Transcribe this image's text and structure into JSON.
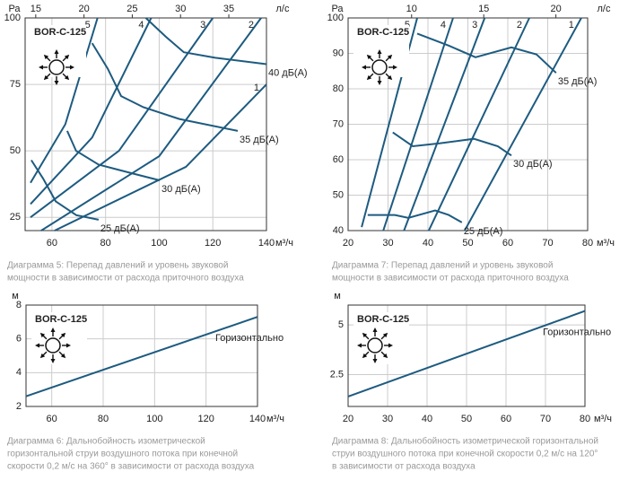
{
  "chart_data": [
    {
      "type": "line",
      "model": "BOR-C-125",
      "caption": [
        "Диаграмма 5: Перепад давлений и уровень звуковой",
        "мощности в зависимости от  расхода приточного воздуха"
      ],
      "ylabel": "Ра",
      "xlabel": "м³/ч",
      "x2label": "л/с",
      "color": "#1d5b80",
      "grid": true,
      "xlim": [
        50,
        140
      ],
      "ylim": [
        20,
        100
      ],
      "xticks": [
        60,
        80,
        100,
        120,
        140
      ],
      "yticks": [
        25,
        50,
        75,
        100
      ],
      "x2lim": [
        13.9,
        38.9
      ],
      "x2ticks": [
        15,
        20,
        25,
        30,
        35
      ],
      "series": [
        {
          "name": "1",
          "x": [
            61,
            110,
            140
          ],
          "values": [
            20,
            44,
            75
          ]
        },
        {
          "name": "2",
          "x": [
            56,
            100,
            138
          ],
          "values": [
            20,
            48,
            100
          ]
        },
        {
          "name": "3",
          "x": [
            52,
            85,
            120
          ],
          "values": [
            25,
            50,
            100
          ]
        },
        {
          "name": "4",
          "x": [
            52,
            75,
            97
          ],
          "values": [
            30,
            55,
            100
          ]
        },
        {
          "name": "5",
          "x": [
            52,
            65,
            77
          ],
          "values": [
            38,
            60,
            100
          ]
        },
        {
          "name": "40 дБ(А)",
          "x": [
            95,
            102.5,
            109.2,
            120.9,
            140
          ],
          "values": [
            100,
            92.9,
            87.1,
            85,
            82.6
          ]
        },
        {
          "name": "35 дБ(А)",
          "x": [
            75,
            80.8,
            85.8,
            94.1,
            107.5,
            129.3
          ],
          "values": [
            90.5,
            80.9,
            70.6,
            66.4,
            62,
            57.5
          ]
        },
        {
          "name": "30 дБ(А)",
          "x": [
            65.7,
            69,
            77.4,
            90.8,
            100.2
          ],
          "values": [
            57.5,
            50,
            44.8,
            41.3,
            38.9
          ]
        },
        {
          "name": "25 дБ(А)",
          "x": [
            52.3,
            56.7,
            61.4,
            69.1,
            77.4
          ],
          "values": [
            46.5,
            39.6,
            31,
            25.8,
            24.1
          ]
        }
      ]
    },
    {
      "type": "line",
      "model": "BOR-C-125",
      "caption": [
        "Диаграмма 7: Перепад давлений и уровень звуковой",
        "мощности в зависимости от  расхода приточного воздуха"
      ],
      "ylabel": "Ра",
      "xlabel": "м³/ч",
      "x2label": "л/с",
      "color": "#1d5b80",
      "grid": true,
      "xlim": [
        20,
        80
      ],
      "ylim": [
        40,
        100
      ],
      "xticks": [
        20,
        30,
        40,
        50,
        60,
        70,
        80
      ],
      "yticks": [
        40,
        50,
        60,
        70,
        80,
        90,
        100
      ],
      "x2lim": [
        5.6,
        22.2
      ],
      "x2ticks": [
        10,
        15,
        20
      ],
      "series": [
        {
          "name": "1",
          "x": [
            49.2,
            78.4
          ],
          "values": [
            40,
            100
          ]
        },
        {
          "name": "2",
          "x": [
            40.2,
            65.4
          ],
          "values": [
            40,
            100
          ]
        },
        {
          "name": "3",
          "x": [
            34,
            54.2
          ],
          "values": [
            40,
            100
          ]
        },
        {
          "name": "4",
          "x": [
            28.8,
            46.3
          ],
          "values": [
            40,
            100
          ]
        },
        {
          "name": "5",
          "x": [
            23.4,
            37.3
          ],
          "values": [
            41,
            100
          ]
        },
        {
          "name": "35 дБ(А)",
          "x": [
            37.3,
            45.2,
            51.9,
            60.9,
            67.2,
            72.1
          ],
          "values": [
            95.6,
            92.2,
            88.9,
            91.7,
            89.7,
            84.5
          ]
        },
        {
          "name": "30 дБ(А)",
          "x": [
            31.2,
            36.2,
            42.9,
            51.5,
            57.5,
            60.9
          ],
          "values": [
            67.7,
            63.8,
            64.6,
            65.9,
            63.8,
            61.2
          ]
        },
        {
          "name": "25 дБ(А)",
          "x": [
            24.9,
            31.7,
            35.1,
            41.8,
            45.2,
            48.5
          ],
          "values": [
            44.4,
            44.4,
            43.6,
            45.7,
            44.4,
            42.3
          ]
        }
      ]
    },
    {
      "type": "line",
      "model": "BOR-C-125",
      "caption": [
        "Диаграмма 6: Дальнобойность изометрической",
        "горизонтальной струи воздушного потока при конечной",
        "скорости 0,2 м/с на 360° в зависимости от расхода воздуха"
      ],
      "ylabel": "м",
      "xlabel": "м³/ч",
      "color": "#1d5b80",
      "grid": true,
      "xlim": [
        50,
        140
      ],
      "ylim": [
        2,
        8
      ],
      "xticks": [
        60,
        80,
        100,
        120,
        140
      ],
      "yticks": [
        2,
        4,
        6,
        8
      ],
      "series": [
        {
          "name": "Горизонтально",
          "x": [
            50,
            140
          ],
          "values": [
            2.6,
            7.3
          ]
        }
      ]
    },
    {
      "type": "line",
      "model": "BOR-C-125",
      "caption": [
        "Диаграмма 8: Дальнобойность изометрической горизонтальной",
        "струи воздушного потока при конечной скорости 0,2 м/с на 120°",
        "в зависимости от расхода воздуха"
      ],
      "ylabel": "м",
      "xlabel": "м³/ч",
      "color": "#1d5b80",
      "grid": true,
      "xlim": [
        20,
        80
      ],
      "ylim": [
        0.9,
        6
      ],
      "xticks": [
        20,
        30,
        40,
        50,
        60,
        70,
        80
      ],
      "yticks": [
        2.5,
        5
      ],
      "series": [
        {
          "name": "Горизонтально",
          "x": [
            20,
            80
          ],
          "values": [
            1.4,
            5.7
          ]
        }
      ]
    }
  ]
}
